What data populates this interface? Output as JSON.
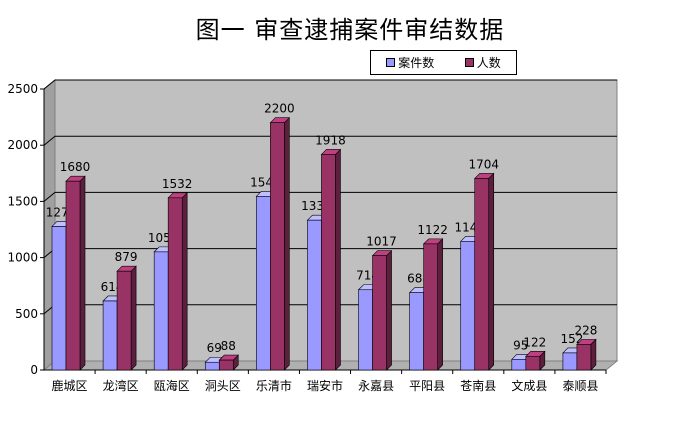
{
  "chart_data": {
    "type": "bar",
    "title": "图一  审查逮捕案件审结数据",
    "categories": [
      "鹿城区",
      "龙湾区",
      "瓯海区",
      "洞头区",
      "乐清市",
      "瑞安市",
      "永嘉县",
      "平阳县",
      "苍南县",
      "文成县",
      "泰顺县"
    ],
    "series": [
      {
        "name": "案件数",
        "color": "#9999ff",
        "values": [
          1277,
          614,
          1051,
          69,
          1545,
          1333,
          714,
          688,
          1145,
          95,
          152
        ]
      },
      {
        "name": "人数",
        "color": "#993366",
        "values": [
          1680,
          879,
          1532,
          88,
          2200,
          1918,
          1017,
          1122,
          1704,
          122,
          228
        ]
      }
    ],
    "y_ticks": [
      "0",
      "500",
      "1000",
      "1500",
      "2000",
      "2500"
    ],
    "ylim": [
      0,
      2500
    ],
    "grid": true,
    "legend": "top-right",
    "plot_background": "#c0c0c0"
  }
}
